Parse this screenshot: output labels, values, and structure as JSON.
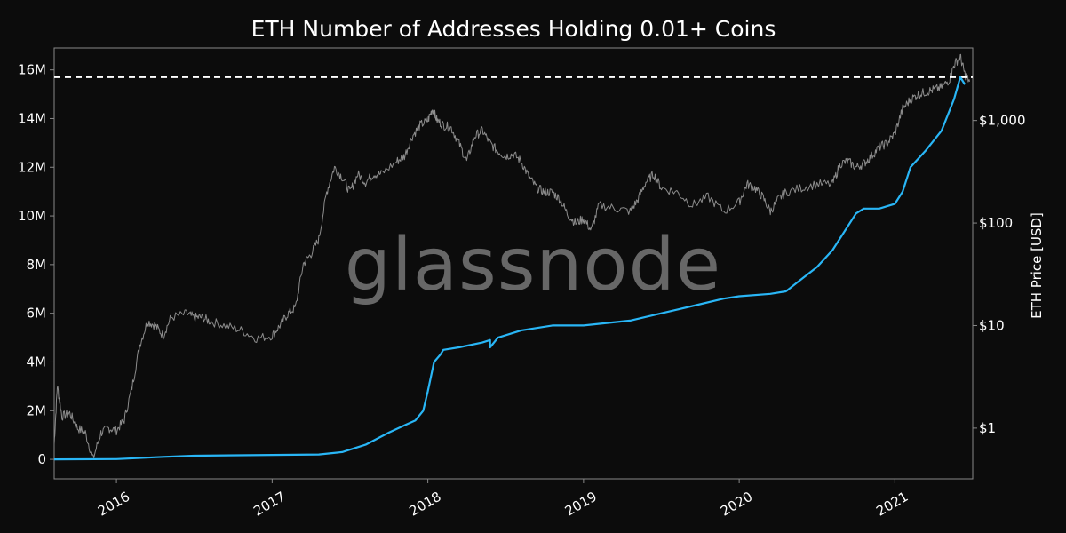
{
  "chart_data": {
    "type": "line",
    "title": "ETH Number of Addresses Holding 0.01+ Coins",
    "watermark": "glassnode",
    "xlabel": "",
    "ylabel_left": "",
    "ylabel_right": "ETH Price [USD]",
    "x_range": [
      2015.6,
      2021.5
    ],
    "y_left_range": [
      -800000,
      16900000
    ],
    "y_right_log_range": [
      0.32,
      5100
    ],
    "x_ticks": [
      {
        "label": "2016",
        "value": 2016.0
      },
      {
        "label": "2017",
        "value": 2017.0
      },
      {
        "label": "2018",
        "value": 2018.0
      },
      {
        "label": "2019",
        "value": 2019.0
      },
      {
        "label": "2020",
        "value": 2020.0
      },
      {
        "label": "2021",
        "value": 2021.0
      }
    ],
    "y_left_ticks": [
      {
        "label": "0",
        "value": 0
      },
      {
        "label": "2M",
        "value": 2000000
      },
      {
        "label": "4M",
        "value": 4000000
      },
      {
        "label": "6M",
        "value": 6000000
      },
      {
        "label": "8M",
        "value": 8000000
      },
      {
        "label": "10M",
        "value": 10000000
      },
      {
        "label": "12M",
        "value": 12000000
      },
      {
        "label": "14M",
        "value": 14000000
      },
      {
        "label": "16M",
        "value": 16000000
      }
    ],
    "y_right_ticks": [
      {
        "label": "$1",
        "value": 1
      },
      {
        "label": "$10",
        "value": 10
      },
      {
        "label": "$100",
        "value": 100
      },
      {
        "label": "$1,000",
        "value": 1000
      }
    ],
    "ath_line": {
      "value": 15700000,
      "style": "dashed"
    },
    "colors": {
      "background": "#0c0c0c",
      "addresses": "#29b6f6",
      "price": "#8c8c8c",
      "ath": "#ffffff",
      "axes": "#888888",
      "text": "#ffffff"
    },
    "series": [
      {
        "name": "Addresses holding 0.01+ ETH",
        "axis": "left",
        "x": [
          2015.6,
          2016.0,
          2016.3,
          2016.5,
          2017.0,
          2017.3,
          2017.45,
          2017.6,
          2017.75,
          2017.85,
          2017.92,
          2017.97,
          2018.0,
          2018.04,
          2018.08,
          2018.1,
          2018.2,
          2018.35,
          2018.4,
          2018.4,
          2018.45,
          2018.6,
          2018.8,
          2019.0,
          2019.3,
          2019.5,
          2019.7,
          2019.9,
          2020.0,
          2020.2,
          2020.3,
          2020.4,
          2020.5,
          2020.6,
          2020.75,
          2020.8,
          2020.9,
          2021.0,
          2021.05,
          2021.1,
          2021.2,
          2021.3,
          2021.38,
          2021.42,
          2021.45
        ],
        "values": [
          0,
          10000,
          100000,
          150000,
          180000,
          200000,
          300000,
          600000,
          1100000,
          1400000,
          1600000,
          2000000,
          2800000,
          4000000,
          4300000,
          4500000,
          4600000,
          4800000,
          4900000,
          4600000,
          5000000,
          5300000,
          5500000,
          5500000,
          5700000,
          6000000,
          6300000,
          6600000,
          6700000,
          6800000,
          6900000,
          7400000,
          7900000,
          8600000,
          10100000,
          10300000,
          10300000,
          10500000,
          11000000,
          12000000,
          12700000,
          13500000,
          14800000,
          15700000,
          15400000
        ]
      },
      {
        "name": "ETH Price [USD]",
        "axis": "right",
        "scale": "log",
        "x": [
          2015.6,
          2015.62,
          2015.65,
          2015.7,
          2015.75,
          2015.8,
          2015.85,
          2015.9,
          2015.95,
          2016.0,
          2016.05,
          2016.1,
          2016.15,
          2016.2,
          2016.25,
          2016.3,
          2016.35,
          2016.45,
          2016.5,
          2016.55,
          2016.6,
          2016.7,
          2016.8,
          2016.9,
          2017.0,
          2017.05,
          2017.1,
          2017.15,
          2017.2,
          2017.25,
          2017.3,
          2017.35,
          2017.4,
          2017.45,
          2017.5,
          2017.55,
          2017.6,
          2017.65,
          2017.7,
          2017.8,
          2017.85,
          2017.9,
          2017.95,
          2018.0,
          2018.03,
          2018.06,
          2018.1,
          2018.15,
          2018.2,
          2018.25,
          2018.3,
          2018.35,
          2018.4,
          2018.45,
          2018.5,
          2018.55,
          2018.6,
          2018.65,
          2018.7,
          2018.75,
          2018.8,
          2018.85,
          2018.9,
          2018.95,
          2019.0,
          2019.05,
          2019.1,
          2019.2,
          2019.3,
          2019.35,
          2019.4,
          2019.45,
          2019.5,
          2019.6,
          2019.7,
          2019.8,
          2019.9,
          2020.0,
          2020.05,
          2020.1,
          2020.15,
          2020.2,
          2020.25,
          2020.3,
          2020.4,
          2020.5,
          2020.6,
          2020.65,
          2020.7,
          2020.75,
          2020.8,
          2020.85,
          2020.9,
          2020.95,
          2021.0,
          2021.05,
          2021.1,
          2021.15,
          2021.2,
          2021.25,
          2021.3,
          2021.35,
          2021.38,
          2021.42,
          2021.45,
          2021.48
        ],
        "values": [
          0.7,
          2.6,
          1.3,
          1.4,
          1.0,
          0.9,
          0.5,
          0.9,
          1.0,
          0.95,
          1.2,
          2.5,
          6.5,
          11,
          10,
          8,
          12,
          13,
          12,
          12,
          11,
          10,
          9,
          7.5,
          8,
          10,
          13,
          15,
          40,
          50,
          70,
          200,
          350,
          280,
          200,
          300,
          250,
          300,
          300,
          400,
          450,
          700,
          900,
          1000,
          1300,
          1000,
          900,
          850,
          600,
          400,
          700,
          800,
          600,
          500,
          450,
          470,
          400,
          280,
          220,
          200,
          200,
          170,
          120,
          100,
          110,
          85,
          150,
          140,
          130,
          170,
          250,
          300,
          220,
          200,
          150,
          180,
          130,
          160,
          240,
          220,
          180,
          130,
          170,
          200,
          220,
          240,
          240,
          380,
          400,
          350,
          380,
          450,
          550,
          600,
          750,
          1300,
          1600,
          1800,
          1900,
          2000,
          2100,
          2500,
          3500,
          4200,
          2800,
          2400
        ]
      }
    ]
  }
}
